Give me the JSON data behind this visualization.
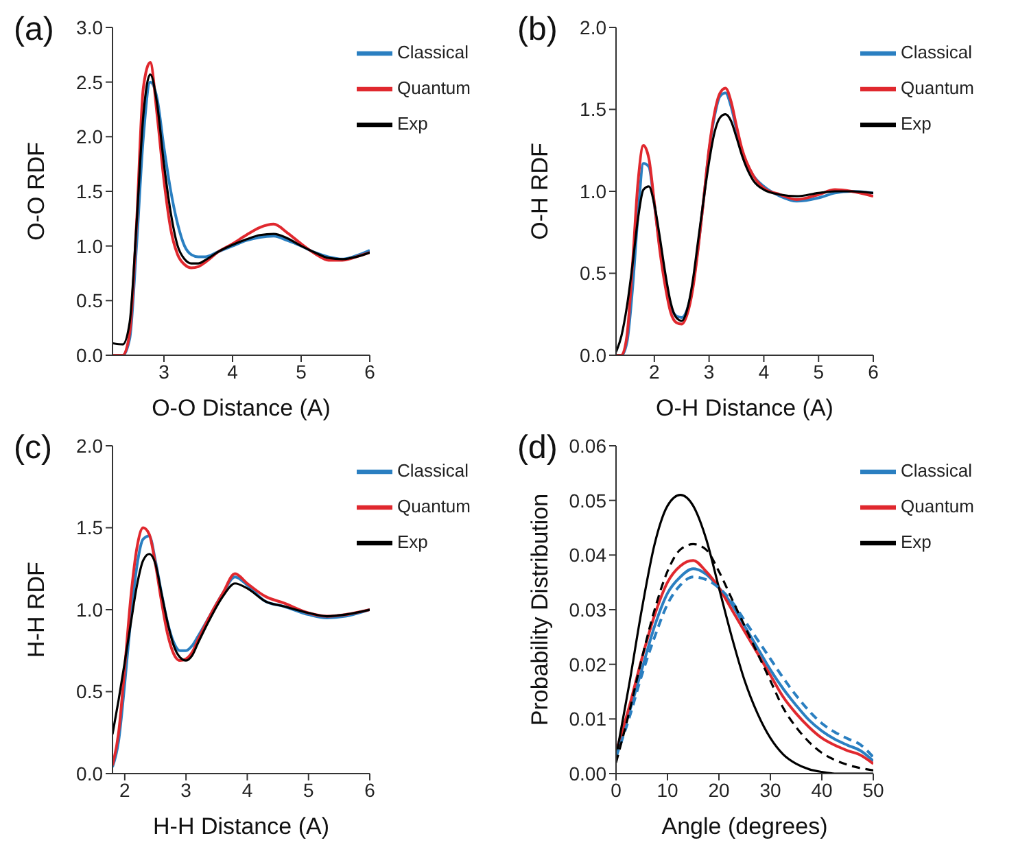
{
  "chart_data": [
    {
      "type": "line",
      "title": "(a)",
      "xlabel": "O-O Distance (A)",
      "ylabel": "O-O RDF",
      "legend": "top right",
      "grid": false,
      "marker": "none",
      "xlim": [
        2.25,
        6
      ],
      "xticks": [
        3,
        4,
        5,
        6
      ],
      "ylim": [
        0,
        3
      ],
      "yticks": [
        {
          "value": 0,
          "label": "0.0"
        },
        0.5,
        {
          "value": 1,
          "label": "1.0"
        },
        1.5,
        {
          "value": 2,
          "label": "2.0"
        },
        2.5,
        {
          "value": 3,
          "label": "3.0"
        }
      ],
      "x": [
        2.25,
        2.4,
        2.5,
        2.6,
        2.7,
        2.8,
        2.9,
        3.0,
        3.1,
        3.2,
        3.3,
        3.4,
        3.5,
        3.6,
        3.8,
        4.0,
        4.2,
        4.4,
        4.6,
        4.8,
        5.0,
        5.2,
        5.4,
        5.6,
        5.8,
        6.0
      ],
      "series": [
        {
          "name": "Classical",
          "color": "#2a7fc1",
          "line_style": "solid",
          "values": [
            0,
            0,
            0.15,
            1.0,
            2.0,
            2.5,
            2.35,
            1.9,
            1.5,
            1.2,
            1.0,
            0.92,
            0.9,
            0.9,
            0.95,
            1.0,
            1.05,
            1.08,
            1.09,
            1.05,
            1.0,
            0.94,
            0.9,
            0.88,
            0.91,
            0.96
          ]
        },
        {
          "name": "Quantum",
          "color": "#e0282e",
          "line_style": "solid",
          "values": [
            0,
            0,
            0.2,
            1.2,
            2.45,
            2.68,
            2.2,
            1.6,
            1.15,
            0.92,
            0.83,
            0.8,
            0.81,
            0.85,
            0.95,
            1.02,
            1.1,
            1.17,
            1.2,
            1.12,
            1.02,
            0.93,
            0.87,
            0.87,
            0.9,
            0.94
          ]
        },
        {
          "name": "Exp",
          "color": "#000000",
          "line_style": "solid",
          "values": [
            0.11,
            0.1,
            0.3,
            1.2,
            2.2,
            2.57,
            2.3,
            1.75,
            1.3,
            1.0,
            0.88,
            0.84,
            0.84,
            0.87,
            0.95,
            1.01,
            1.06,
            1.1,
            1.11,
            1.07,
            1.0,
            0.94,
            0.89,
            0.88,
            0.9,
            0.94
          ]
        }
      ]
    },
    {
      "type": "line",
      "title": "(b)",
      "xlabel": "O-H Distance (A)",
      "ylabel": "O-H RDF",
      "legend": "top right",
      "grid": false,
      "marker": "none",
      "xlim": [
        1.3,
        6
      ],
      "xticks": [
        2,
        3,
        4,
        5,
        6
      ],
      "ylim": [
        0,
        2
      ],
      "yticks": [
        {
          "value": 0,
          "label": "0.0"
        },
        0.5,
        {
          "value": 1,
          "label": "1.0"
        },
        1.5,
        {
          "value": 2,
          "label": "2.0"
        }
      ],
      "x": [
        1.3,
        1.4,
        1.5,
        1.6,
        1.7,
        1.8,
        1.9,
        2.0,
        2.1,
        2.2,
        2.3,
        2.4,
        2.5,
        2.6,
        2.7,
        2.8,
        2.9,
        3.0,
        3.1,
        3.2,
        3.3,
        3.4,
        3.5,
        3.6,
        3.8,
        4.0,
        4.3,
        4.6,
        5.0,
        5.3,
        5.6,
        6.0
      ],
      "series": [
        {
          "name": "Classical",
          "color": "#2a7fc1",
          "line_style": "solid",
          "values": [
            0,
            0,
            0.08,
            0.4,
            0.85,
            1.17,
            1.15,
            0.92,
            0.66,
            0.45,
            0.3,
            0.24,
            0.23,
            0.28,
            0.42,
            0.66,
            0.95,
            1.25,
            1.46,
            1.58,
            1.6,
            1.52,
            1.38,
            1.25,
            1.1,
            1.03,
            0.97,
            0.94,
            0.96,
            0.99,
            1.0,
            0.99
          ]
        },
        {
          "name": "Quantum",
          "color": "#e0282e",
          "line_style": "solid",
          "values": [
            0,
            0,
            0.12,
            0.55,
            1.05,
            1.28,
            1.2,
            0.93,
            0.64,
            0.42,
            0.26,
            0.2,
            0.19,
            0.25,
            0.4,
            0.65,
            0.95,
            1.26,
            1.48,
            1.6,
            1.63,
            1.55,
            1.4,
            1.26,
            1.1,
            1.02,
            0.98,
            0.95,
            0.98,
            1.01,
            1.0,
            0.97
          ]
        },
        {
          "name": "Exp",
          "color": "#000000",
          "line_style": "solid",
          "values": [
            0.02,
            0.12,
            0.3,
            0.55,
            0.83,
            1.01,
            1.03,
            0.92,
            0.72,
            0.5,
            0.32,
            0.23,
            0.21,
            0.28,
            0.45,
            0.7,
            0.95,
            1.18,
            1.36,
            1.45,
            1.47,
            1.43,
            1.33,
            1.22,
            1.07,
            1.01,
            0.98,
            0.97,
            0.99,
            1.0,
            1.0,
            0.99
          ]
        }
      ]
    },
    {
      "type": "line",
      "title": "(c)",
      "xlabel": "H-H Distance (A)",
      "ylabel": "H-H RDF",
      "legend": "top right",
      "grid": false,
      "marker": "none",
      "xlim": [
        1.8,
        6
      ],
      "xticks": [
        2,
        3,
        4,
        5,
        6
      ],
      "ylim": [
        0,
        2
      ],
      "yticks": [
        {
          "value": 0,
          "label": "0.0"
        },
        0.5,
        {
          "value": 1,
          "label": "1.0"
        },
        1.5,
        {
          "value": 2,
          "label": "2.0"
        }
      ],
      "x": [
        1.8,
        1.9,
        2.0,
        2.1,
        2.2,
        2.3,
        2.4,
        2.5,
        2.6,
        2.7,
        2.8,
        2.9,
        3.0,
        3.1,
        3.2,
        3.4,
        3.6,
        3.8,
        4.0,
        4.3,
        4.6,
        5.0,
        5.3,
        5.6,
        6.0
      ],
      "series": [
        {
          "name": "Classical",
          "color": "#2a7fc1",
          "line_style": "solid",
          "values": [
            0.04,
            0.2,
            0.55,
            0.95,
            1.27,
            1.43,
            1.45,
            1.3,
            1.1,
            0.92,
            0.8,
            0.75,
            0.75,
            0.78,
            0.84,
            0.97,
            1.1,
            1.2,
            1.15,
            1.05,
            1.02,
            0.97,
            0.95,
            0.96,
            1.0
          ]
        },
        {
          "name": "Quantum",
          "color": "#e0282e",
          "line_style": "solid",
          "values": [
            0.05,
            0.25,
            0.65,
            1.08,
            1.38,
            1.5,
            1.46,
            1.28,
            1.05,
            0.85,
            0.73,
            0.69,
            0.7,
            0.74,
            0.82,
            0.97,
            1.1,
            1.22,
            1.16,
            1.08,
            1.04,
            0.98,
            0.96,
            0.97,
            1.0
          ]
        },
        {
          "name": "Exp",
          "color": "#000000",
          "line_style": "solid",
          "values": [
            0.24,
            0.45,
            0.68,
            0.92,
            1.15,
            1.3,
            1.34,
            1.28,
            1.1,
            0.92,
            0.78,
            0.71,
            0.69,
            0.72,
            0.8,
            0.95,
            1.08,
            1.16,
            1.13,
            1.05,
            1.02,
            0.98,
            0.96,
            0.97,
            1.0
          ]
        }
      ]
    },
    {
      "type": "line",
      "title": "(d)",
      "xlabel": "Angle (degrees)",
      "ylabel": "Probability Distribution",
      "legend": "top right",
      "grid": false,
      "marker": "none",
      "xlim": [
        0,
        50
      ],
      "xticks": [
        0,
        10,
        20,
        30,
        40,
        50
      ],
      "ylim": [
        0,
        0.06
      ],
      "yticks": [
        {
          "value": 0,
          "label": "0.00"
        },
        0.01,
        0.02,
        0.03,
        0.04,
        0.05,
        0.06
      ],
      "x": [
        0,
        2.5,
        5,
        7.5,
        10,
        12.5,
        15,
        17.5,
        20,
        22.5,
        25,
        27.5,
        30,
        32.5,
        35,
        37.5,
        40,
        42.5,
        45,
        47.5,
        50
      ],
      "series": [
        {
          "name": "Classical",
          "color": "#2a7fc1",
          "line_style": "solid",
          "values": [
            0.004,
            0.011,
            0.019,
            0.027,
            0.033,
            0.036,
            0.0375,
            0.0365,
            0.034,
            0.031,
            0.027,
            0.023,
            0.019,
            0.0155,
            0.0125,
            0.0098,
            0.0078,
            0.0063,
            0.0052,
            0.0042,
            0.0023
          ]
        },
        {
          "name": "Quantum",
          "color": "#e0282e",
          "line_style": "solid",
          "values": [
            0.004,
            0.012,
            0.021,
            0.029,
            0.035,
            0.038,
            0.039,
            0.037,
            0.034,
            0.03,
            0.026,
            0.022,
            0.018,
            0.014,
            0.011,
            0.0085,
            0.0065,
            0.0052,
            0.0042,
            0.0034,
            0.0018
          ]
        },
        {
          "name": "Exp",
          "color": "#000000",
          "line_style": "solid",
          "values": [
            0.003,
            0.016,
            0.03,
            0.042,
            0.049,
            0.051,
            0.049,
            0.043,
            0.034,
            0.025,
            0.017,
            0.011,
            0.0065,
            0.0035,
            0.0018,
            0.0008,
            0.0003,
            0,
            0,
            0,
            0
          ]
        },
        {
          "color": "#2a7fc1",
          "line_style": "dashed",
          "values": [
            0.003,
            0.01,
            0.018,
            0.025,
            0.031,
            0.0345,
            0.036,
            0.0355,
            0.034,
            0.0315,
            0.028,
            0.0245,
            0.021,
            0.0175,
            0.0143,
            0.0115,
            0.0092,
            0.0076,
            0.0064,
            0.0053,
            0.003
          ]
        },
        {
          "color": "#000000",
          "line_style": "dashed",
          "values": [
            0.002,
            0.011,
            0.021,
            0.03,
            0.037,
            0.041,
            0.042,
            0.041,
            0.037,
            0.032,
            0.027,
            0.022,
            0.017,
            0.012,
            0.0085,
            0.0058,
            0.0038,
            0.0025,
            0.0016,
            0.001,
            0.0006
          ]
        }
      ]
    }
  ]
}
